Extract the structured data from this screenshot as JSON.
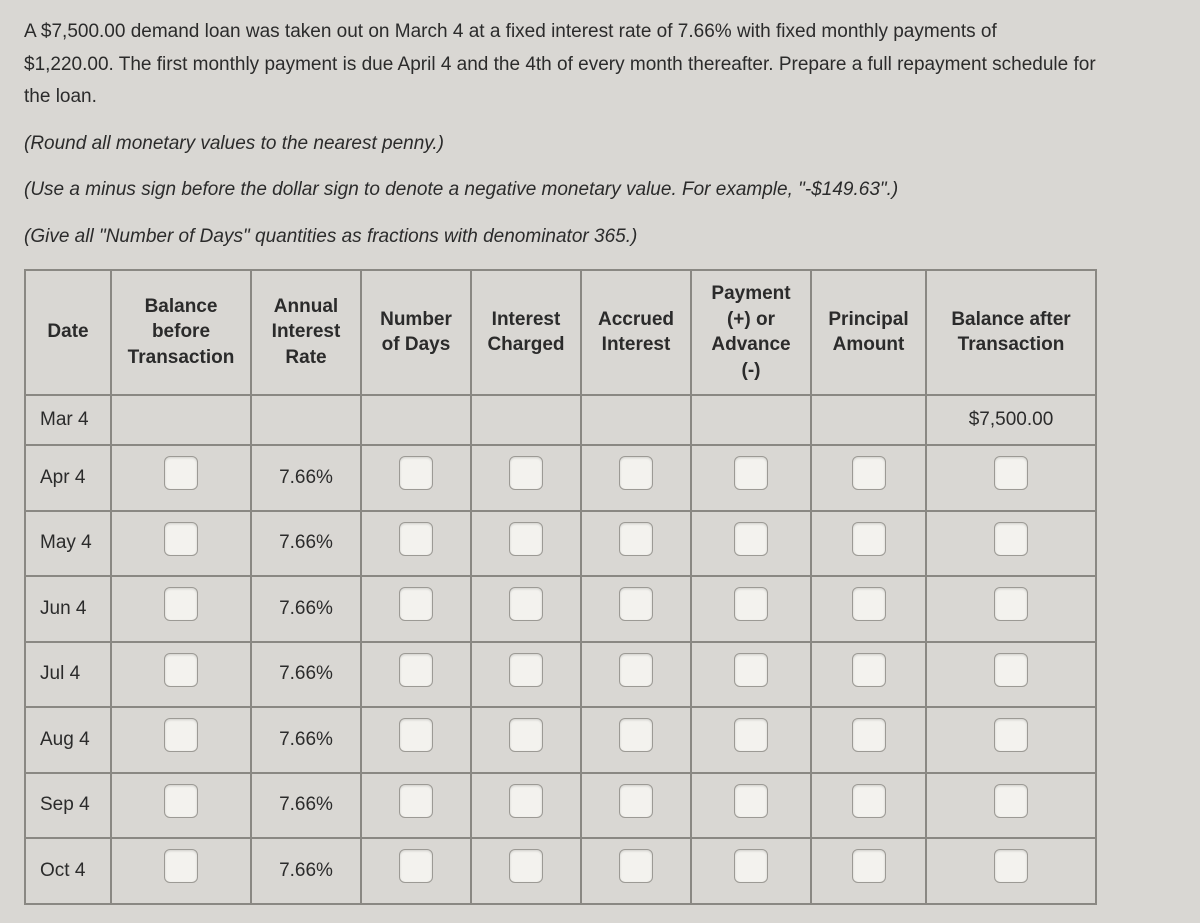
{
  "problem": {
    "line1": "A $7,500.00 demand loan was taken out on March 4 at a fixed interest rate of 7.66% with fixed monthly payments of",
    "line2": "$1,220.00. The first monthly payment is due April 4 and the 4th of every month thereafter. Prepare a full repayment schedule for",
    "line3": "the loan."
  },
  "instructions": {
    "i1": "(Round all monetary values to the nearest penny.)",
    "i2": "(Use a minus sign before the dollar sign to denote a negative monetary value. For example, \"-$149.63\".)",
    "i3": "(Give all \"Number of Days\" quantities as fractions with denominator 365.)"
  },
  "headers": {
    "date": "Date",
    "balance_before": "Balance before Transaction",
    "annual_rate": "Annual Interest Rate",
    "num_days": "Number of Days",
    "interest_charged": "Interest Charged",
    "accrued_interest": "Accrued Interest",
    "payment": "Payment (+) or Advance (-)",
    "principal": "Principal Amount",
    "balance_after": "Balance after Transaction"
  },
  "rows": [
    {
      "date": "Mar 4",
      "rate": "",
      "balance_after": "$7,500.00",
      "has_inputs": false
    },
    {
      "date": "Apr 4",
      "rate": "7.66%",
      "balance_after": "",
      "has_inputs": true
    },
    {
      "date": "May 4",
      "rate": "7.66%",
      "balance_after": "",
      "has_inputs": true
    },
    {
      "date": "Jun 4",
      "rate": "7.66%",
      "balance_after": "",
      "has_inputs": true
    },
    {
      "date": "Jul 4",
      "rate": "7.66%",
      "balance_after": "",
      "has_inputs": true
    },
    {
      "date": "Aug 4",
      "rate": "7.66%",
      "balance_after": "",
      "has_inputs": true
    },
    {
      "date": "Sep 4",
      "rate": "7.66%",
      "balance_after": "",
      "has_inputs": true
    },
    {
      "date": "Oct 4",
      "rate": "7.66%",
      "balance_after": "",
      "has_inputs": true
    }
  ],
  "style": {
    "background_color": "#d9d7d3",
    "text_color": "#2b2b2b",
    "border_color": "#8a8883",
    "input_bg": "#f3f2ee",
    "input_border": "#9c9a95",
    "font_size_body": 19,
    "font_size_table": 19
  }
}
